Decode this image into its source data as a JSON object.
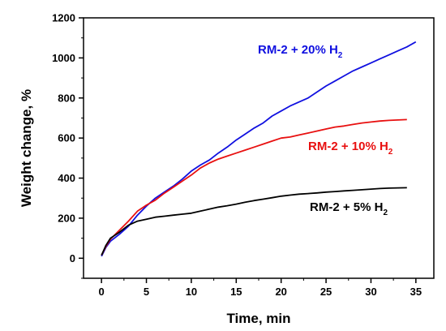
{
  "chart_data": {
    "type": "line",
    "title": "",
    "xlabel": "Time, min",
    "ylabel": "Weight change, %",
    "xlim": [
      -2,
      37
    ],
    "ylim": [
      -100,
      1200
    ],
    "xticks": [
      0,
      5,
      10,
      15,
      20,
      25,
      30,
      35
    ],
    "yticks": [
      0,
      200,
      400,
      600,
      800,
      1000,
      1200
    ],
    "grid": false,
    "legend": "none",
    "series": [
      {
        "name": "RM-2 + 20% H2",
        "label_main": "RM-2 + 20% H",
        "label_sub": "2",
        "color": "#1010e0",
        "x": [
          0,
          0.5,
          1,
          2,
          3,
          4,
          5,
          6,
          7,
          8,
          9,
          10,
          11,
          12,
          13,
          14,
          15,
          16,
          17,
          18,
          19,
          20,
          21,
          22,
          23,
          24,
          25,
          26,
          27,
          28,
          29,
          30,
          31,
          32,
          33,
          34,
          35
        ],
        "values": [
          10,
          55,
          85,
          120,
          160,
          215,
          260,
          300,
          330,
          360,
          395,
          435,
          465,
          490,
          525,
          555,
          590,
          620,
          650,
          675,
          710,
          735,
          760,
          780,
          800,
          830,
          860,
          885,
          910,
          935,
          955,
          975,
          995,
          1015,
          1035,
          1055,
          1080
        ]
      },
      {
        "name": "RM-2 + 10% H2",
        "label_main": "RM-2 + 10% H",
        "label_sub": "2",
        "color": "#e81010",
        "x": [
          0,
          0.5,
          1,
          2,
          3,
          4,
          5,
          6,
          7,
          8,
          9,
          10,
          11,
          12,
          13,
          14,
          15,
          16,
          17,
          18,
          19,
          20,
          21,
          22,
          23,
          24,
          25,
          26,
          27,
          28,
          29,
          30,
          31,
          32,
          33,
          34
        ],
        "values": [
          15,
          60,
          95,
          140,
          185,
          235,
          265,
          290,
          325,
          355,
          385,
          415,
          450,
          475,
          495,
          510,
          525,
          540,
          555,
          570,
          585,
          600,
          605,
          615,
          625,
          635,
          645,
          655,
          660,
          668,
          675,
          680,
          685,
          688,
          690,
          692
        ]
      },
      {
        "name": "RM-2 + 5% H2",
        "label_main": "RM-2 + 5% H",
        "label_sub": "2",
        "color": "#000000",
        "x": [
          0,
          0.5,
          1,
          2,
          3,
          4,
          5,
          6,
          7,
          8,
          9,
          10,
          11,
          12,
          13,
          14,
          15,
          16,
          17,
          18,
          19,
          20,
          21,
          22,
          23,
          24,
          25,
          26,
          27,
          28,
          29,
          30,
          31,
          32,
          33,
          34
        ],
        "values": [
          15,
          65,
          100,
          130,
          165,
          185,
          195,
          205,
          210,
          215,
          220,
          225,
          235,
          245,
          255,
          262,
          270,
          280,
          288,
          295,
          302,
          310,
          315,
          320,
          323,
          326,
          330,
          333,
          336,
          339,
          342,
          345,
          348,
          350,
          351,
          352
        ]
      }
    ]
  }
}
